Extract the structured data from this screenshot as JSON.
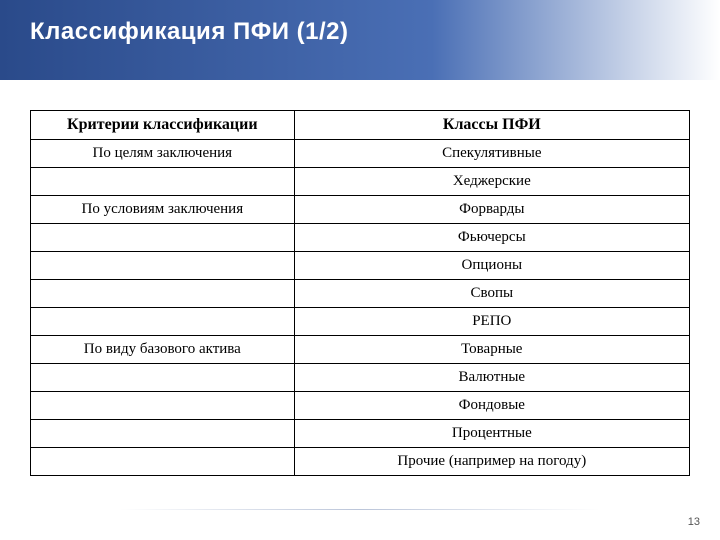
{
  "slide": {
    "title": "Классификация ПФИ (1/2)",
    "page_number": "13",
    "background_color": "#ffffff",
    "header_gradient_start": "#2a4a8a",
    "header_gradient_mid": "#4a6fb5",
    "title_color": "#ffffff",
    "title_fontsize": 24
  },
  "table": {
    "type": "table",
    "border_color": "#000000",
    "text_color": "#000000",
    "font_family": "Times New Roman",
    "header_fontsize": 16,
    "cell_fontsize": 15,
    "columns": [
      {
        "key": "criteria",
        "label": "Критерии классификации",
        "width_pct": 40,
        "align": "center",
        "bold": true
      },
      {
        "key": "classes",
        "label": "Классы ПФИ",
        "width_pct": 60,
        "align": "center",
        "bold": true
      }
    ],
    "rows": [
      {
        "criteria": "По целям заключения",
        "classes": "Спекулятивные"
      },
      {
        "criteria": "",
        "classes": "Хеджерские"
      },
      {
        "criteria": "По условиям заключения",
        "classes": "Форварды"
      },
      {
        "criteria": "",
        "classes": "Фьючерсы"
      },
      {
        "criteria": "",
        "classes": "Опционы"
      },
      {
        "criteria": "",
        "classes": "Свопы"
      },
      {
        "criteria": "",
        "classes": "РЕПО"
      },
      {
        "criteria": "По виду базового актива",
        "classes": "Товарные"
      },
      {
        "criteria": "",
        "classes": "Валютные"
      },
      {
        "criteria": "",
        "classes": "Фондовые"
      },
      {
        "criteria": "",
        "classes": "Процентные"
      },
      {
        "criteria": "",
        "classes": "Прочие (например на погоду)"
      }
    ]
  }
}
